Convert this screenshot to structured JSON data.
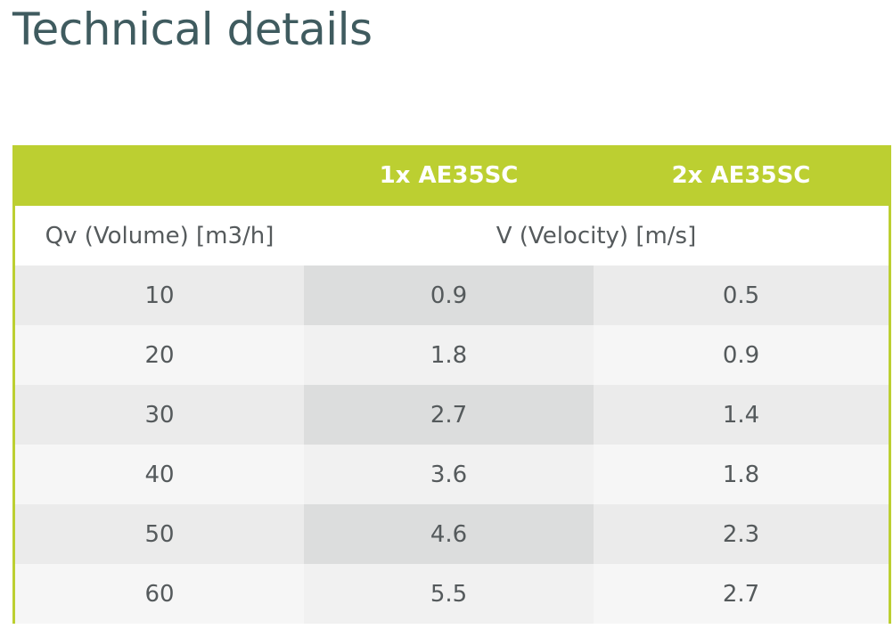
{
  "header": {
    "title": "Technical details"
  },
  "table": {
    "columns": [
      "1x AE35SC",
      "2x AE35SC"
    ],
    "subheader": [
      "Qv (Volume) [m3/h]",
      "V (Velocity) [m/s]"
    ],
    "rows": [
      [
        10,
        0.9,
        0.5
      ],
      [
        20,
        1.8,
        0.9
      ],
      [
        30,
        2.7,
        1.4
      ],
      [
        40,
        3.6,
        1.8
      ],
      [
        50,
        4.6,
        2.3
      ],
      [
        60,
        5.5,
        2.7
      ]
    ]
  }
}
